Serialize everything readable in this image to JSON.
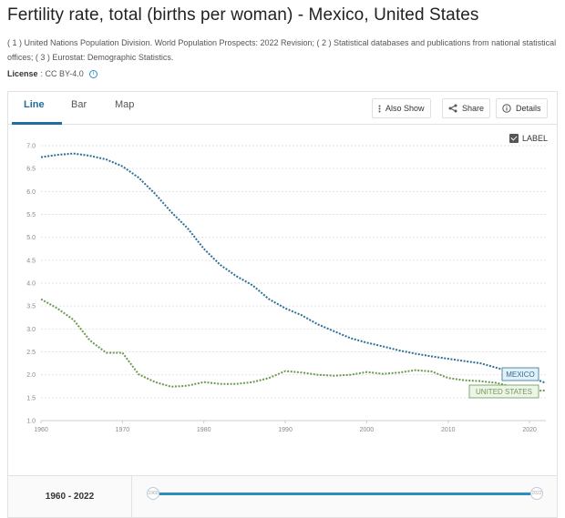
{
  "header": {
    "title": "Fertility rate, total (births per woman) - Mexico, United States",
    "sources": "( 1 ) United Nations Population Division. World Population Prospects: 2022 Revision; ( 2 ) Statistical databases and publications from national statistical offices; ( 3 ) Eurostat: Demographic Statistics.",
    "license_label": "License",
    "license_value": ": CC BY-4.0"
  },
  "tabs": [
    {
      "label": "Line",
      "active": true
    },
    {
      "label": "Bar",
      "active": false
    },
    {
      "label": "Map",
      "active": false
    }
  ],
  "toolbar": {
    "also_show": "Also Show",
    "share": "Share",
    "details": "Details"
  },
  "label_toggle": {
    "label": "LABEL",
    "checked": true
  },
  "range": {
    "label": "1960 - 2022",
    "slider_start": "1960",
    "slider_end": "2022"
  },
  "colors": {
    "mexico": "#2d6f96",
    "united_states": "#6a9a52",
    "accent": "#1f6f9e",
    "slider": "#2a8fc0"
  },
  "chart_data": {
    "type": "line",
    "ylim": [
      1.0,
      7.0
    ],
    "xlim": [
      1960,
      2022
    ],
    "y_ticks": [
      "1.0",
      "1.5",
      "2.0",
      "2.5",
      "3.0",
      "3.5",
      "4.0",
      "4.5",
      "5.0",
      "5.5",
      "6.0",
      "6.5",
      "7.0"
    ],
    "x_ticks": [
      "1960",
      "1970",
      "1980",
      "1990",
      "2000",
      "2010",
      "2020"
    ],
    "grid": true,
    "series": [
      {
        "name": "MEXICO",
        "x": [
          1960,
          1962,
          1964,
          1966,
          1968,
          1970,
          1972,
          1974,
          1976,
          1978,
          1980,
          1982,
          1984,
          1986,
          1988,
          1990,
          1992,
          1994,
          1996,
          1998,
          2000,
          2002,
          2004,
          2006,
          2008,
          2010,
          2012,
          2014,
          2016,
          2018,
          2020,
          2022
        ],
        "y": [
          6.75,
          6.8,
          6.83,
          6.78,
          6.7,
          6.55,
          6.3,
          5.95,
          5.55,
          5.2,
          4.75,
          4.4,
          4.15,
          3.95,
          3.65,
          3.45,
          3.3,
          3.1,
          2.95,
          2.8,
          2.7,
          2.62,
          2.53,
          2.46,
          2.4,
          2.35,
          2.3,
          2.25,
          2.15,
          2.05,
          1.95,
          1.82
        ]
      },
      {
        "name": "UNITED STATES",
        "x": [
          1960,
          1962,
          1964,
          1966,
          1968,
          1970,
          1972,
          1974,
          1976,
          1978,
          1980,
          1982,
          1984,
          1986,
          1988,
          1990,
          1992,
          1994,
          1996,
          1998,
          2000,
          2002,
          2004,
          2006,
          2008,
          2010,
          2012,
          2014,
          2016,
          2018,
          2020,
          2022
        ],
        "y": [
          3.65,
          3.45,
          3.2,
          2.75,
          2.48,
          2.48,
          2.01,
          1.84,
          1.74,
          1.76,
          1.84,
          1.8,
          1.8,
          1.84,
          1.93,
          2.08,
          2.05,
          2.0,
          1.98,
          2.0,
          2.06,
          2.02,
          2.05,
          2.1,
          2.07,
          1.93,
          1.88,
          1.86,
          1.82,
          1.73,
          1.64,
          1.66
        ]
      }
    ]
  }
}
